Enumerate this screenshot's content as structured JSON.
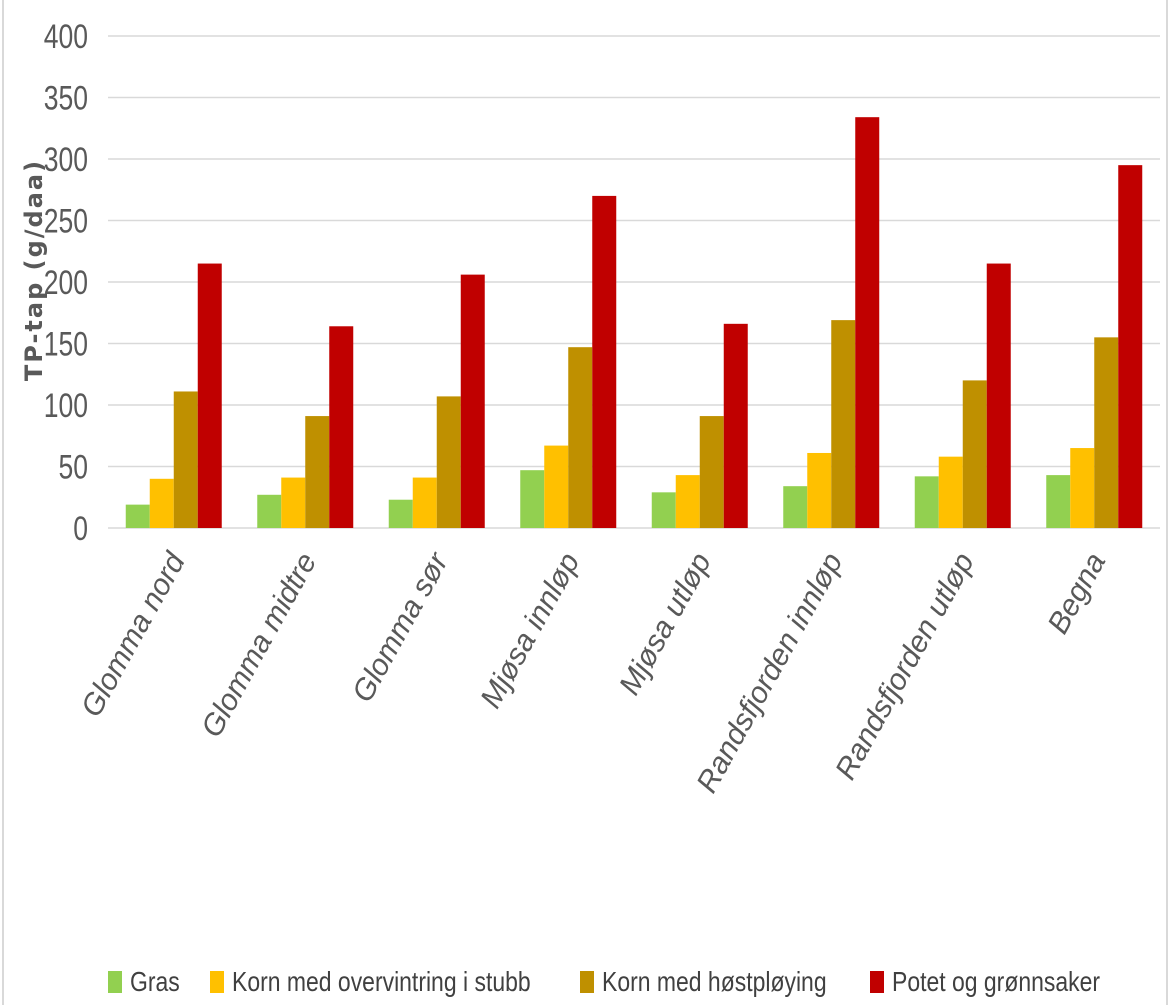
{
  "chart_data": {
    "type": "bar",
    "title": "",
    "xlabel": "",
    "ylabel": "TP-tap (g/daa)",
    "ylim": [
      0,
      400
    ],
    "yticks": [
      0,
      50,
      100,
      150,
      200,
      250,
      300,
      350,
      400
    ],
    "grid": true,
    "legend_position": "bottom",
    "categories": [
      "Glomma nord",
      "Glomma midtre",
      "Glomma sør",
      "Mjøsa innløp",
      "Mjøsa utløp",
      "Randsfjorden innløp",
      "Randsfjorden utløp",
      "Begna"
    ],
    "series": [
      {
        "name": "Gras",
        "color": "#92d050",
        "values": [
          19,
          27,
          23,
          47,
          29,
          34,
          42,
          43
        ]
      },
      {
        "name": "Korn med overvintring i stubb",
        "color": "#ffc000",
        "values": [
          40,
          41,
          41,
          67,
          43,
          61,
          58,
          65
        ]
      },
      {
        "name": "Korn med høstpløying",
        "color": "#bf9000",
        "values": [
          111,
          91,
          107,
          147,
          91,
          169,
          120,
          155
        ]
      },
      {
        "name": "Potet og grønnsaker",
        "color": "#c00000",
        "values": [
          215,
          164,
          206,
          270,
          166,
          334,
          215,
          295
        ]
      }
    ]
  }
}
